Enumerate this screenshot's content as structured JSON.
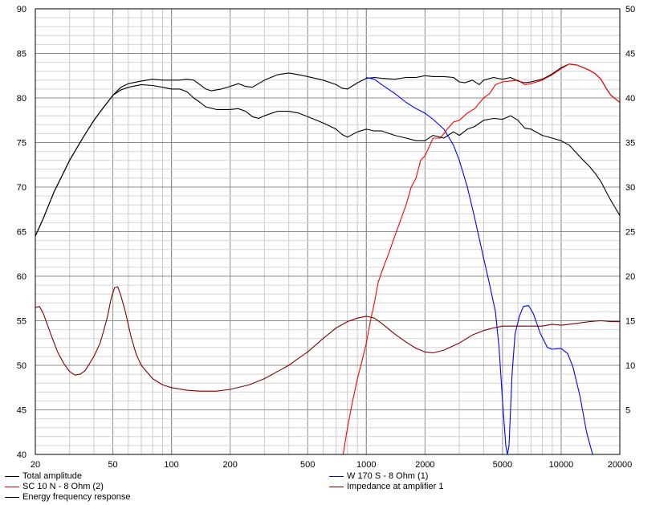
{
  "chart_data": {
    "type": "line",
    "x_scale": "log",
    "xlim": [
      20,
      20000
    ],
    "ylim_left": [
      40,
      90
    ],
    "ylim_right": [
      0,
      50
    ],
    "grid": true,
    "x_tick_labels": [
      {
        "v": 20,
        "label": "20"
      },
      {
        "v": 50,
        "label": "50"
      },
      {
        "v": 100,
        "label": "100"
      },
      {
        "v": 200,
        "label": "200"
      },
      {
        "v": 500,
        "label": "500"
      },
      {
        "v": 1000,
        "label": "1000"
      },
      {
        "v": 2000,
        "label": "2000"
      },
      {
        "v": 5000,
        "label": "5000"
      },
      {
        "v": 10000,
        "label": "10000"
      },
      {
        "v": 20000,
        "label": "20000"
      }
    ],
    "y_left_ticks": [
      {
        "v": 90,
        "label": "90"
      },
      {
        "v": 85,
        "label": "85"
      },
      {
        "v": 80,
        "label": "80"
      },
      {
        "v": 75,
        "label": "75"
      },
      {
        "v": 70,
        "label": "70"
      },
      {
        "v": 65,
        "label": "65"
      },
      {
        "v": 60,
        "label": "60"
      },
      {
        "v": 55,
        "label": "55"
      },
      {
        "v": 50,
        "label": "50"
      },
      {
        "v": 45,
        "label": "45"
      },
      {
        "v": 40,
        "label": "40"
      }
    ],
    "y_right_ticks": [
      {
        "v": 50,
        "label": "50"
      },
      {
        "v": 45,
        "label": "45"
      },
      {
        "v": 40,
        "label": "40"
      },
      {
        "v": 35,
        "label": "35"
      },
      {
        "v": 30,
        "label": "30"
      },
      {
        "v": 25,
        "label": "25"
      },
      {
        "v": 20,
        "label": "20"
      },
      {
        "v": 15,
        "label": "15"
      },
      {
        "v": 10,
        "label": "10"
      },
      {
        "v": 5,
        "label": "5"
      }
    ],
    "legend_position": "bottom",
    "series": [
      {
        "name": "Total amplitude",
        "color": "#000000",
        "axis": "left",
        "points": [
          [
            20,
            64.5
          ],
          [
            22,
            66.5
          ],
          [
            25,
            69.5
          ],
          [
            30,
            73
          ],
          [
            35,
            75.5
          ],
          [
            40,
            77.5
          ],
          [
            45,
            79
          ],
          [
            50,
            80.3
          ],
          [
            55,
            81.2
          ],
          [
            60,
            81.6
          ],
          [
            70,
            81.9
          ],
          [
            80,
            82.1
          ],
          [
            90,
            82
          ],
          [
            100,
            82
          ],
          [
            110,
            82
          ],
          [
            120,
            82.1
          ],
          [
            130,
            82
          ],
          [
            140,
            81.5
          ],
          [
            150,
            81
          ],
          [
            160,
            80.8
          ],
          [
            180,
            81
          ],
          [
            200,
            81.3
          ],
          [
            220,
            81.6
          ],
          [
            240,
            81.3
          ],
          [
            260,
            81.2
          ],
          [
            300,
            82
          ],
          [
            350,
            82.6
          ],
          [
            400,
            82.8
          ],
          [
            450,
            82.6
          ],
          [
            500,
            82.4
          ],
          [
            600,
            82
          ],
          [
            700,
            81.5
          ],
          [
            750,
            81.1
          ],
          [
            800,
            81
          ],
          [
            900,
            81.7
          ],
          [
            1000,
            82.2
          ],
          [
            1100,
            82.3
          ],
          [
            1200,
            82.2
          ],
          [
            1400,
            82.1
          ],
          [
            1600,
            82.3
          ],
          [
            1800,
            82.3
          ],
          [
            2000,
            82.5
          ],
          [
            2200,
            82.4
          ],
          [
            2500,
            82.4
          ],
          [
            2800,
            82.3
          ],
          [
            3000,
            81.8
          ],
          [
            3200,
            81.7
          ],
          [
            3500,
            82
          ],
          [
            3800,
            81.5
          ],
          [
            4000,
            82
          ],
          [
            4500,
            82.3
          ],
          [
            5000,
            82.1
          ],
          [
            5500,
            82.3
          ],
          [
            6000,
            81.9
          ],
          [
            6500,
            81.7
          ],
          [
            7000,
            81.8
          ],
          [
            8000,
            82.1
          ],
          [
            9000,
            82.7
          ],
          [
            10000,
            83.4
          ],
          [
            11000,
            83.8
          ],
          [
            12000,
            83.7
          ],
          [
            13000,
            83.4
          ],
          [
            14000,
            83.1
          ],
          [
            15000,
            82.7
          ],
          [
            16000,
            82.1
          ],
          [
            17000,
            81.1
          ],
          [
            18000,
            80.3
          ],
          [
            20000,
            79.5
          ]
        ]
      },
      {
        "name": "W 170 S - 8 Ohm (1)",
        "color": "#0000ff",
        "axis": "left",
        "points": [
          [
            1000,
            82.3
          ],
          [
            1100,
            82.1
          ],
          [
            1200,
            81.5
          ],
          [
            1400,
            80.5
          ],
          [
            1600,
            79.5
          ],
          [
            1800,
            78.8
          ],
          [
            2000,
            78.3
          ],
          [
            2200,
            77.6
          ],
          [
            2500,
            76.5
          ],
          [
            2800,
            74.7
          ],
          [
            3000,
            73
          ],
          [
            3300,
            70
          ],
          [
            3600,
            66.5
          ],
          [
            4000,
            62
          ],
          [
            4300,
            59
          ],
          [
            4600,
            56
          ],
          [
            4800,
            52
          ],
          [
            5000,
            46
          ],
          [
            5200,
            41
          ],
          [
            5300,
            40
          ],
          [
            5400,
            41
          ],
          [
            5600,
            49
          ],
          [
            5800,
            53.5
          ],
          [
            6100,
            55.5
          ],
          [
            6400,
            56.6
          ],
          [
            6800,
            56.7
          ],
          [
            7200,
            55.8
          ],
          [
            7800,
            53.6
          ],
          [
            8500,
            52
          ],
          [
            9000,
            51.8
          ],
          [
            10000,
            51.9
          ],
          [
            10800,
            51.3
          ],
          [
            11500,
            49.8
          ],
          [
            12500,
            46.5
          ],
          [
            13500,
            42.5
          ],
          [
            14500,
            40
          ],
          [
            20000,
            40
          ]
        ]
      },
      {
        "name": "SC 10 N - 8 Ohm (2)",
        "color": "#ff0000",
        "axis": "left",
        "points": [
          [
            20,
            40
          ],
          [
            760,
            40
          ],
          [
            800,
            43
          ],
          [
            850,
            46
          ],
          [
            900,
            48.5
          ],
          [
            950,
            50.5
          ],
          [
            1000,
            52.5
          ],
          [
            1050,
            55
          ],
          [
            1100,
            57
          ],
          [
            1150,
            59.3
          ],
          [
            1200,
            60.5
          ],
          [
            1300,
            62.5
          ],
          [
            1400,
            64.5
          ],
          [
            1500,
            66.3
          ],
          [
            1600,
            68
          ],
          [
            1700,
            70
          ],
          [
            1800,
            71
          ],
          [
            1900,
            73
          ],
          [
            2000,
            73.5
          ],
          [
            2100,
            74.5
          ],
          [
            2200,
            75.5
          ],
          [
            2400,
            75.5
          ],
          [
            2600,
            76.5
          ],
          [
            2800,
            77.3
          ],
          [
            3000,
            77.5
          ],
          [
            3300,
            78.3
          ],
          [
            3600,
            78.8
          ],
          [
            4000,
            80
          ],
          [
            4300,
            80.5
          ],
          [
            4600,
            81.5
          ],
          [
            5000,
            81.8
          ],
          [
            5500,
            81.9
          ],
          [
            6000,
            82
          ],
          [
            6500,
            81.5
          ],
          [
            7000,
            81.6
          ],
          [
            8000,
            82
          ],
          [
            9000,
            82.6
          ],
          [
            10000,
            83.3
          ],
          [
            11000,
            83.8
          ],
          [
            12000,
            83.7
          ],
          [
            13000,
            83.4
          ],
          [
            14000,
            83.1
          ],
          [
            15000,
            82.7
          ],
          [
            16000,
            82.1
          ],
          [
            17000,
            81.1
          ],
          [
            18000,
            80.3
          ],
          [
            20000,
            79.5
          ]
        ]
      },
      {
        "name": "Impedance at amplifier 1",
        "color": "#800000",
        "axis": "right",
        "points": [
          [
            20,
            16.5
          ],
          [
            21,
            16.6
          ],
          [
            22,
            15.8
          ],
          [
            24,
            13.5
          ],
          [
            26,
            11.5
          ],
          [
            28,
            10.2
          ],
          [
            30,
            9.3
          ],
          [
            32,
            8.9
          ],
          [
            34,
            9
          ],
          [
            36,
            9.4
          ],
          [
            38,
            10.2
          ],
          [
            40,
            11
          ],
          [
            43,
            12.5
          ],
          [
            45,
            14
          ],
          [
            47,
            15.5
          ],
          [
            49,
            17.5
          ],
          [
            51,
            18.7
          ],
          [
            53,
            18.8
          ],
          [
            55,
            17.8
          ],
          [
            58,
            16
          ],
          [
            62,
            13.2
          ],
          [
            66,
            11.2
          ],
          [
            70,
            10
          ],
          [
            80,
            8.5
          ],
          [
            90,
            7.8
          ],
          [
            100,
            7.5
          ],
          [
            120,
            7.2
          ],
          [
            140,
            7.1
          ],
          [
            170,
            7.1
          ],
          [
            200,
            7.3
          ],
          [
            250,
            7.8
          ],
          [
            300,
            8.5
          ],
          [
            350,
            9.3
          ],
          [
            400,
            10
          ],
          [
            450,
            10.8
          ],
          [
            500,
            11.5
          ],
          [
            600,
            13
          ],
          [
            700,
            14.2
          ],
          [
            800,
            14.9
          ],
          [
            900,
            15.3
          ],
          [
            1000,
            15.5
          ],
          [
            1100,
            15.3
          ],
          [
            1200,
            14.7
          ],
          [
            1400,
            13.5
          ],
          [
            1600,
            12.6
          ],
          [
            1800,
            11.9
          ],
          [
            2000,
            11.5
          ],
          [
            2200,
            11.4
          ],
          [
            2500,
            11.7
          ],
          [
            3000,
            12.5
          ],
          [
            3500,
            13.4
          ],
          [
            4000,
            13.9
          ],
          [
            4500,
            14.2
          ],
          [
            5000,
            14.4
          ],
          [
            6000,
            14.4
          ],
          [
            7000,
            14.4
          ],
          [
            8000,
            14.4
          ],
          [
            9000,
            14.6
          ],
          [
            10000,
            14.5
          ],
          [
            12000,
            14.7
          ],
          [
            14000,
            14.9
          ],
          [
            16000,
            15
          ],
          [
            18000,
            14.9
          ],
          [
            20000,
            14.9
          ]
        ]
      },
      {
        "name": "Energy frequency response",
        "color": "#000000",
        "axis": "left",
        "points": [
          [
            20,
            64.5
          ],
          [
            22,
            66.5
          ],
          [
            25,
            69.5
          ],
          [
            30,
            73
          ],
          [
            35,
            75.5
          ],
          [
            40,
            77.5
          ],
          [
            45,
            79
          ],
          [
            50,
            80.3
          ],
          [
            55,
            80.9
          ],
          [
            60,
            81.2
          ],
          [
            70,
            81.5
          ],
          [
            80,
            81.4
          ],
          [
            90,
            81.2
          ],
          [
            100,
            81
          ],
          [
            110,
            81
          ],
          [
            120,
            80.7
          ],
          [
            130,
            80
          ],
          [
            140,
            79.5
          ],
          [
            150,
            79
          ],
          [
            170,
            78.7
          ],
          [
            200,
            78.7
          ],
          [
            220,
            78.8
          ],
          [
            240,
            78.5
          ],
          [
            260,
            77.9
          ],
          [
            280,
            77.7
          ],
          [
            300,
            78
          ],
          [
            350,
            78.5
          ],
          [
            400,
            78.5
          ],
          [
            450,
            78.3
          ],
          [
            500,
            77.9
          ],
          [
            600,
            77.2
          ],
          [
            700,
            76.5
          ],
          [
            750,
            75.9
          ],
          [
            800,
            75.6
          ],
          [
            900,
            76.2
          ],
          [
            1000,
            76.5
          ],
          [
            1100,
            76.3
          ],
          [
            1200,
            76.3
          ],
          [
            1400,
            75.8
          ],
          [
            1600,
            75.5
          ],
          [
            1800,
            75.2
          ],
          [
            2000,
            75.2
          ],
          [
            2200,
            75.8
          ],
          [
            2500,
            75.5
          ],
          [
            2800,
            76.2
          ],
          [
            3000,
            75.8
          ],
          [
            3300,
            76.5
          ],
          [
            3600,
            76.8
          ],
          [
            4000,
            77.5
          ],
          [
            4500,
            77.7
          ],
          [
            5000,
            77.6
          ],
          [
            5500,
            78
          ],
          [
            6000,
            77.5
          ],
          [
            6500,
            76.6
          ],
          [
            7000,
            76.5
          ],
          [
            8000,
            75.8
          ],
          [
            9000,
            75.5
          ],
          [
            10000,
            75.2
          ],
          [
            11000,
            74.7
          ],
          [
            12000,
            73.8
          ],
          [
            13000,
            73
          ],
          [
            14000,
            72.3
          ],
          [
            15000,
            71.5
          ],
          [
            16000,
            70.6
          ],
          [
            17000,
            69.5
          ],
          [
            18000,
            68.5
          ],
          [
            20000,
            66.8
          ]
        ]
      }
    ]
  }
}
